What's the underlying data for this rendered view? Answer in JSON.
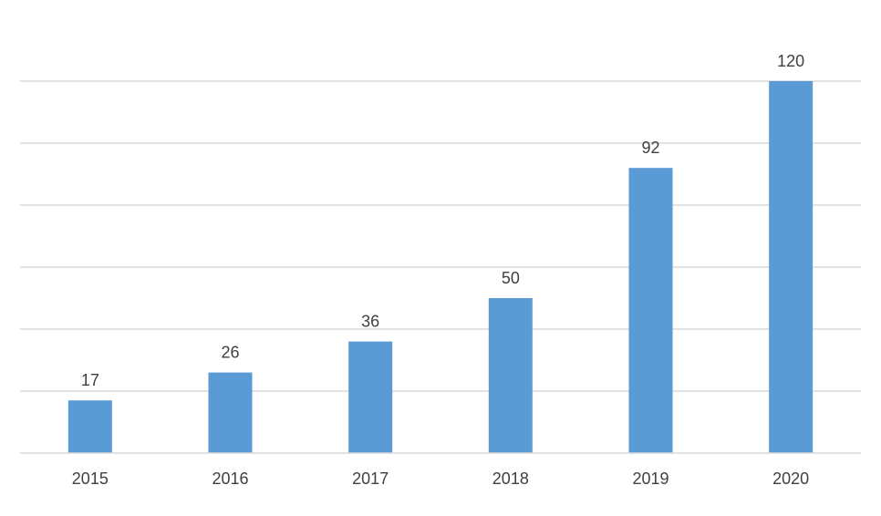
{
  "chart_data": {
    "type": "bar",
    "categories": [
      "2015",
      "2016",
      "2017",
      "2018",
      "2019",
      "2020"
    ],
    "values": [
      17,
      26,
      36,
      50,
      92,
      120
    ],
    "title": "",
    "xlabel": "",
    "ylabel": "",
    "ylim": [
      0,
      120
    ],
    "grid": true,
    "gridline_count": 6,
    "legend": "none",
    "colors": {
      "bar": "#5b9bd5",
      "gridline": "#d9d9d9",
      "text": "#404040",
      "background": "#ffffff"
    }
  }
}
